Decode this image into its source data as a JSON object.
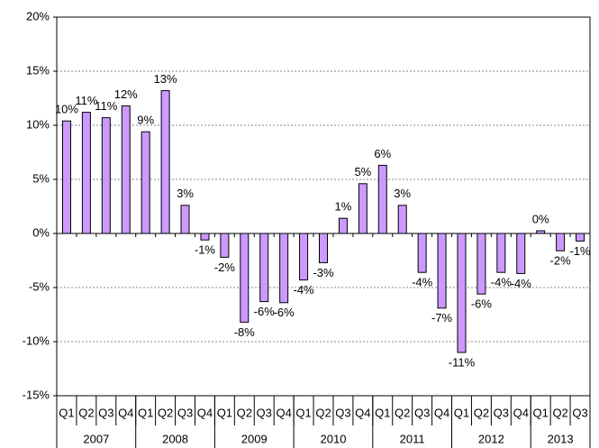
{
  "chart_data": {
    "type": "bar",
    "groups": [
      {
        "name": "2007",
        "categories": [
          "Q1",
          "Q2",
          "Q3",
          "Q4"
        ]
      },
      {
        "name": "2008",
        "categories": [
          "Q1",
          "Q2",
          "Q3",
          "Q4"
        ]
      },
      {
        "name": "2009",
        "categories": [
          "Q1",
          "Q2",
          "Q3",
          "Q4"
        ]
      },
      {
        "name": "2010",
        "categories": [
          "Q1",
          "Q2",
          "Q3",
          "Q4"
        ]
      },
      {
        "name": "2011",
        "categories": [
          "Q1",
          "Q2",
          "Q3",
          "Q4"
        ]
      },
      {
        "name": "2012",
        "categories": [
          "Q1",
          "Q2",
          "Q3",
          "Q4"
        ]
      },
      {
        "name": "2013",
        "categories": [
          "Q1",
          "Q2",
          "Q3"
        ]
      }
    ],
    "values": [
      10.4,
      11.2,
      10.7,
      11.8,
      9.4,
      13.2,
      2.6,
      -0.6,
      -2.2,
      -8.2,
      -6.3,
      -6.4,
      -4.3,
      -2.7,
      1.4,
      4.6,
      6.3,
      2.6,
      -3.6,
      -6.9,
      -11,
      -5.6,
      -3.6,
      -3.7,
      0.25,
      -1.6,
      -0.7
    ],
    "value_labels": [
      "10%",
      "11%",
      "11%",
      "12%",
      "9%",
      "13%",
      "3%",
      "-1%",
      "-2%",
      "-8%",
      "-6%",
      "-6%",
      "-4%",
      "-3%",
      "1%",
      "5%",
      "6%",
      "3%",
      "-4%",
      "-7%",
      "-11%",
      "-6%",
      "-4%",
      "-4%",
      "0%",
      "-2%",
      "-1%"
    ],
    "color": "#cc99ff",
    "ylim": [
      -15,
      20
    ],
    "yticks": [
      {
        "value": -15,
        "label": "-15%"
      },
      {
        "value": -10,
        "label": "-10%"
      },
      {
        "value": -5,
        "label": "-5%"
      },
      {
        "value": 0,
        "label": "0%"
      },
      {
        "value": 5,
        "label": "5%"
      },
      {
        "value": 10,
        "label": "10%"
      },
      {
        "value": 15,
        "label": "15%"
      },
      {
        "value": 20,
        "label": "20%"
      }
    ],
    "grid": true
  }
}
